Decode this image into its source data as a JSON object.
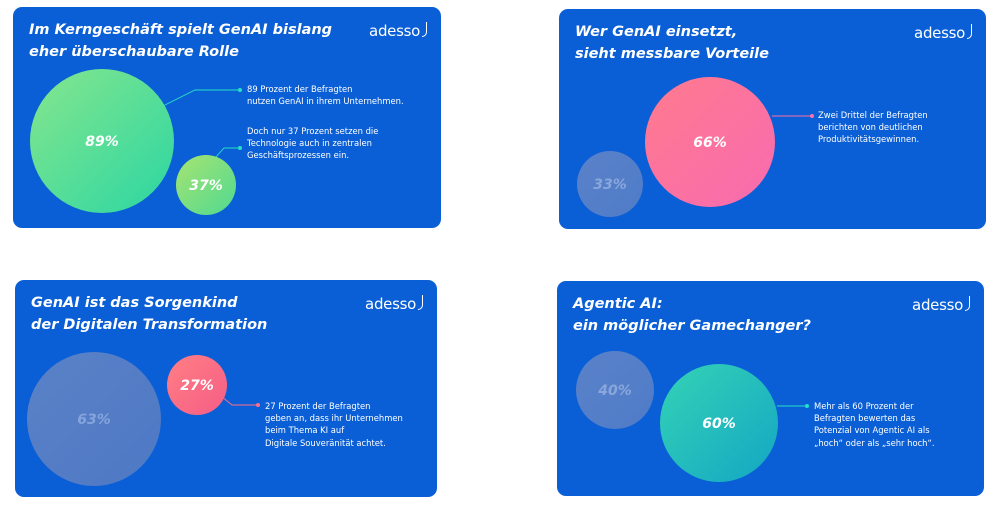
{
  "brand": {
    "logo": "adesso",
    "bg_color": "#0a5fd6",
    "text_color": "#ffffff"
  },
  "chart_data": [
    {
      "type": "bubble",
      "title_lines": [
        "Im Kerngeschäft spielt GenAI bislang",
        "eher überschaubare Rolle"
      ],
      "bubbles": [
        {
          "name": "bubble-89",
          "value": 89,
          "label": "89%",
          "gradient": [
            "#86e68d",
            "#2bd6a3"
          ],
          "text_color": "#ffffff"
        },
        {
          "name": "bubble-37",
          "value": 37,
          "label": "37%",
          "gradient": [
            "#a7e471",
            "#4fd991"
          ],
          "text_color": "#ffffff"
        }
      ],
      "annotations": [
        {
          "lines": [
            "89 Prozent der Befragten",
            "nutzen GenAI in ihrem Unternehmen."
          ],
          "connector_color": "#24e1c6"
        },
        {
          "lines": [
            "Doch nur 37 Prozent setzen die",
            "Technologie auch in zentralen",
            "Geschäftsprozessen ein."
          ],
          "connector_color": "#24e1c6"
        }
      ]
    },
    {
      "type": "bubble",
      "title_lines": [
        "Wer GenAI einsetzt,",
        "sieht messbare Vorteile"
      ],
      "bubbles": [
        {
          "name": "bubble-66",
          "value": 66,
          "label": "66%",
          "gradient": [
            "#ff7a8e",
            "#f86bb0"
          ],
          "text_color": "#ffffff"
        },
        {
          "name": "bubble-33",
          "value": 33,
          "label": "33%",
          "gradient": [
            "#5a82c9",
            "#4f7bc8"
          ],
          "text_color": "#8aa7dc"
        }
      ],
      "annotations": [
        {
          "lines": [
            "Zwei Drittel der Befragten",
            "berichten von deutlichen",
            "Produktivitätsgewinnen."
          ],
          "connector_color": "#ff6fa5"
        }
      ]
    },
    {
      "type": "bubble",
      "title_lines": [
        "GenAI ist das Sorgenkind",
        "der Digitalen Transformation"
      ],
      "bubbles": [
        {
          "name": "bubble-63",
          "value": 63,
          "label": "63%",
          "gradient": [
            "#5b82c7",
            "#4d78c4"
          ],
          "text_color": "#86a4dc"
        },
        {
          "name": "bubble-27",
          "value": 27,
          "label": "27%",
          "gradient": [
            "#ff7f84",
            "#f65d86"
          ],
          "text_color": "#ffffff"
        }
      ],
      "annotations": [
        {
          "lines": [
            "27 Prozent der Befragten",
            "geben an, dass ihr Unternehmen",
            "beim Thema KI auf",
            "Digitale Souveränität achtet."
          ],
          "connector_color": "#ff6f8a"
        }
      ]
    },
    {
      "type": "bubble",
      "title_lines": [
        "Agentic AI:",
        "ein möglicher Gamechanger?"
      ],
      "bubbles": [
        {
          "name": "bubble-40",
          "value": 40,
          "label": "40%",
          "gradient": [
            "#5a82c9",
            "#4f7bc8"
          ],
          "text_color": "#8aa7dc"
        },
        {
          "name": "bubble-60",
          "value": 60,
          "label": "60%",
          "gradient": [
            "#34d3b5",
            "#14a6c4"
          ],
          "text_color": "#ffffff"
        }
      ],
      "annotations": [
        {
          "lines": [
            "Mehr als 60 Prozent der",
            "Befragten bewerten das",
            "Potenzial von Agentic AI als",
            "„hoch“ oder als „sehr hoch“."
          ],
          "connector_color": "#24e1c6"
        }
      ]
    }
  ]
}
